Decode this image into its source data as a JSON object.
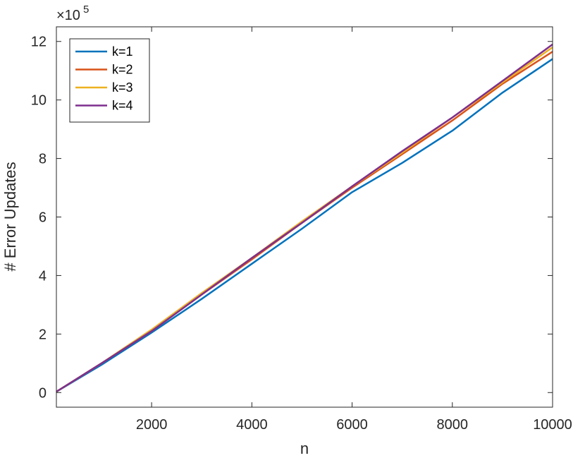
{
  "chart_data": {
    "type": "line",
    "xlabel": "n",
    "ylabel": "# Error Updates",
    "y_exponent_label": "×10",
    "y_exponent_power": "5",
    "xlim": [
      100,
      10000
    ],
    "ylim": [
      -0.5,
      12.5
    ],
    "xticks": [
      2000,
      4000,
      6000,
      8000,
      10000
    ],
    "xtick_labels": [
      "2000",
      "4000",
      "6000",
      "8000",
      "10000"
    ],
    "yticks": [
      0,
      2,
      4,
      6,
      8,
      10,
      12
    ],
    "ytick_labels": [
      "0",
      "2",
      "4",
      "6",
      "8",
      "10",
      "12"
    ],
    "grid": false,
    "legend_position": "top-left",
    "x": [
      100,
      1000,
      2000,
      3000,
      4000,
      5000,
      6000,
      7000,
      8000,
      9000,
      10000
    ],
    "series": [
      {
        "name": "k=1",
        "color": "#0072BD",
        "values": [
          0.03,
          0.95,
          2.05,
          3.2,
          4.4,
          5.6,
          6.85,
          7.85,
          8.95,
          10.25,
          11.4
        ]
      },
      {
        "name": "k=2",
        "color": "#D95319",
        "values": [
          0.03,
          1.0,
          2.1,
          3.35,
          4.55,
          5.8,
          7.0,
          8.15,
          9.3,
          10.55,
          11.65
        ]
      },
      {
        "name": "k=3",
        "color": "#EDB120",
        "values": [
          0.03,
          1.0,
          2.15,
          3.4,
          4.6,
          5.85,
          7.05,
          8.2,
          9.4,
          10.6,
          11.8
        ]
      },
      {
        "name": "k=4",
        "color": "#7E2F8E",
        "values": [
          0.03,
          1.0,
          2.1,
          3.35,
          4.6,
          5.8,
          7.05,
          8.25,
          9.4,
          10.65,
          11.9
        ]
      }
    ]
  }
}
